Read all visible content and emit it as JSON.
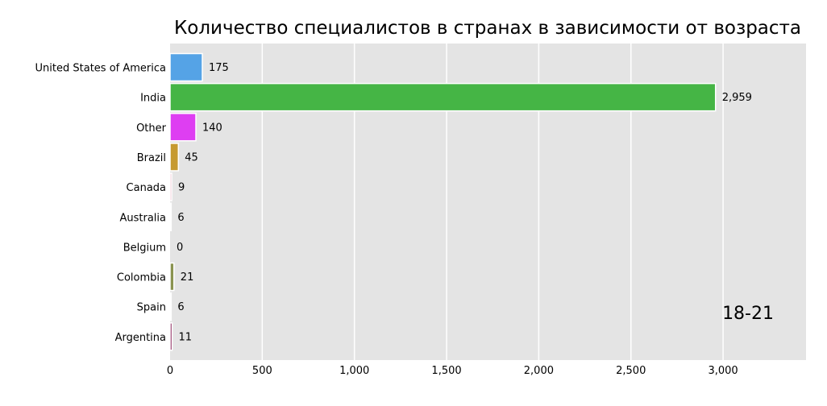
{
  "chart_data": {
    "type": "bar",
    "orientation": "horizontal",
    "title": "Количество специалистов в странах в зависимости от возраста",
    "period_label": "18-21",
    "categories": [
      "United States of America",
      "India",
      "Other",
      "Brazil",
      "Canada",
      "Australia",
      "Belgium",
      "Colombia",
      "Spain",
      "Argentina"
    ],
    "values": [
      175,
      2959,
      140,
      45,
      9,
      6,
      0,
      21,
      6,
      11
    ],
    "value_labels": [
      "175",
      "2,959",
      "140",
      "45",
      "9",
      "6",
      "0",
      "21",
      "6",
      "11"
    ],
    "colors": [
      "#55a3e6",
      "#45b545",
      "#de3ef2",
      "#c69a30",
      "#e8b0c4",
      "#9fb8d8",
      "#c8c8c8",
      "#8a9350",
      "#c8c8c8",
      "#8e2a5e"
    ],
    "xticks": [
      0,
      500,
      1000,
      1500,
      2000,
      2500,
      3000
    ],
    "xtick_labels": [
      "0",
      "500",
      "1,000",
      "1,500",
      "2,000",
      "2,500",
      "3,000"
    ],
    "xlim": [
      0,
      3450
    ],
    "grid": true,
    "background": "#e4e4e4"
  }
}
